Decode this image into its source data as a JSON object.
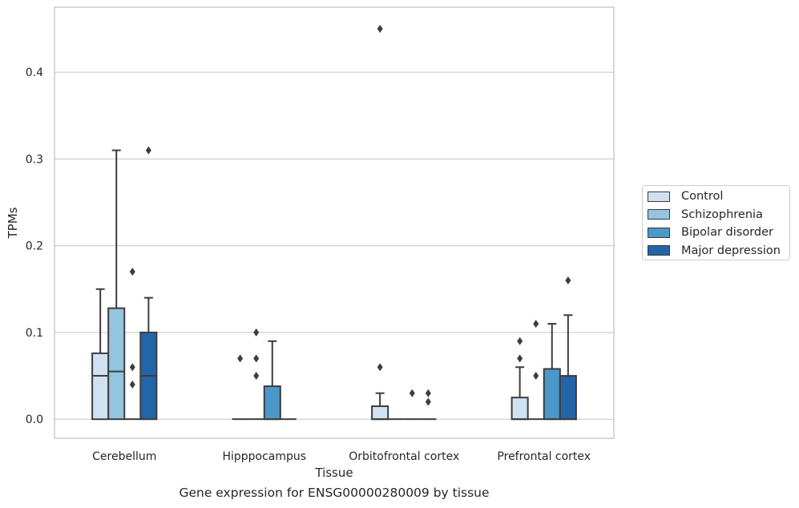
{
  "chart_data": {
    "type": "box",
    "title": "",
    "caption": "Gene expression for ENSG00000280009 by tissue",
    "xlabel": "Tissue",
    "ylabel": "TPMs",
    "ylim": [
      -0.022,
      0.475
    ],
    "yticks": [
      0.0,
      0.1,
      0.2,
      0.3,
      0.4
    ],
    "ytick_labels": [
      "0.0",
      "0.1",
      "0.2",
      "0.3",
      "0.4"
    ],
    "grid": "horizontal",
    "legend_position": "right",
    "categories": [
      "Cerebellum",
      "Hipppocampus",
      "Orbitofrontal cortex",
      "Prefrontal cortex"
    ],
    "series": [
      {
        "name": "Control",
        "color": "#d0e1f2",
        "boxes": [
          {
            "q1": 0.0,
            "median": 0.05,
            "q3": 0.076,
            "whisker_low": 0.0,
            "whisker_high": 0.15,
            "outliers": []
          },
          {
            "q1": 0.0,
            "median": 0.0,
            "q3": 0.0,
            "whisker_low": 0.0,
            "whisker_high": 0.0,
            "outliers": [
              0.07
            ]
          },
          {
            "q1": 0.0,
            "median": 0.0,
            "q3": 0.015,
            "whisker_low": 0.0,
            "whisker_high": 0.03,
            "outliers": [
              0.06,
              0.45
            ]
          },
          {
            "q1": 0.0,
            "median": 0.0,
            "q3": 0.025,
            "whisker_low": 0.0,
            "whisker_high": 0.06,
            "outliers": [
              0.07,
              0.09
            ]
          }
        ]
      },
      {
        "name": "Schizophrenia",
        "color": "#94c4df",
        "boxes": [
          {
            "q1": 0.0,
            "median": 0.055,
            "q3": 0.128,
            "whisker_low": 0.0,
            "whisker_high": 0.31,
            "outliers": []
          },
          {
            "q1": 0.0,
            "median": 0.0,
            "q3": 0.0,
            "whisker_low": 0.0,
            "whisker_high": 0.0,
            "outliers": [
              0.05,
              0.07,
              0.1
            ]
          },
          {
            "q1": 0.0,
            "median": 0.0,
            "q3": 0.0,
            "whisker_low": 0.0,
            "whisker_high": 0.0,
            "outliers": []
          },
          {
            "q1": 0.0,
            "median": 0.0,
            "q3": 0.0,
            "whisker_low": 0.0,
            "whisker_high": 0.0,
            "outliers": [
              0.05,
              0.11
            ]
          }
        ]
      },
      {
        "name": "Bipolar disorder",
        "color": "#4a98c9",
        "boxes": [
          {
            "q1": 0.0,
            "median": 0.0,
            "q3": 0.0,
            "whisker_low": 0.0,
            "whisker_high": 0.0,
            "outliers": [
              0.04,
              0.06,
              0.17
            ]
          },
          {
            "q1": 0.0,
            "median": 0.0,
            "q3": 0.038,
            "whisker_low": 0.0,
            "whisker_high": 0.09,
            "outliers": []
          },
          {
            "q1": 0.0,
            "median": 0.0,
            "q3": 0.0,
            "whisker_low": 0.0,
            "whisker_high": 0.0,
            "outliers": [
              0.03
            ]
          },
          {
            "q1": 0.0,
            "median": 0.0,
            "q3": 0.058,
            "whisker_low": 0.0,
            "whisker_high": 0.11,
            "outliers": []
          }
        ]
      },
      {
        "name": "Major depression",
        "color": "#2464a8",
        "boxes": [
          {
            "q1": 0.0,
            "median": 0.05,
            "q3": 0.1,
            "whisker_low": 0.0,
            "whisker_high": 0.14,
            "outliers": [
              0.31
            ]
          },
          {
            "q1": 0.0,
            "median": 0.0,
            "q3": 0.0,
            "whisker_low": 0.0,
            "whisker_high": 0.0,
            "outliers": []
          },
          {
            "q1": 0.0,
            "median": 0.0,
            "q3": 0.0,
            "whisker_low": 0.0,
            "whisker_high": 0.0,
            "outliers": [
              0.02,
              0.03
            ]
          },
          {
            "q1": 0.0,
            "median": 0.0,
            "q3": 0.05,
            "whisker_low": 0.0,
            "whisker_high": 0.12,
            "outliers": [
              0.16
            ]
          }
        ]
      }
    ]
  }
}
